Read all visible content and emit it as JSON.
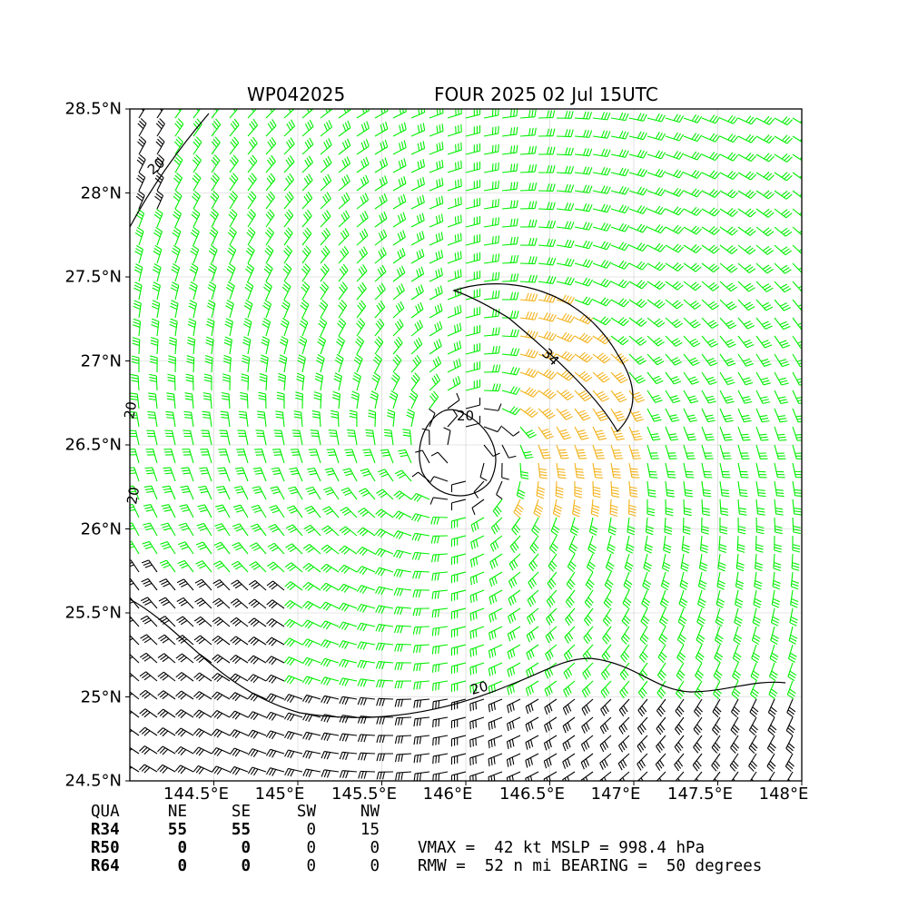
{
  "title": {
    "storm_id": "WP042025",
    "storm_info": "FOUR 2025 02 Jul 15UTC"
  },
  "map": {
    "lat_labels": [
      "28.5°N",
      "28°N",
      "27.5°N",
      "27°N",
      "26.5°N",
      "26°N",
      "25.5°N",
      "25°N",
      "24.5°N"
    ],
    "lon_labels": [
      "144.5°E",
      "145°E",
      "145.5°E",
      "146°E",
      "146.5°E",
      "147°E",
      "147.5°E",
      "148°E"
    ],
    "lat_values": [
      28.5,
      28.0,
      27.5,
      27.0,
      26.5,
      26.0,
      25.5,
      25.0,
      24.5
    ],
    "lon_values": [
      144.5,
      145.0,
      145.5,
      146.0,
      146.5,
      147.0,
      147.5,
      148.0
    ],
    "lon_range": [
      144.0,
      148.0
    ],
    "lat_range": [
      24.5,
      28.5
    ],
    "storm_center": {
      "lon": 146.0,
      "lat": 26.45
    },
    "contour_labels": [
      "20",
      "20",
      "20",
      "20",
      "20",
      "34"
    ],
    "barb_colors": {
      "below_34kt": "#000000",
      "34_to_50kt": "#00ee00",
      "above_34_core": "#f2b21a"
    },
    "grid": true
  },
  "wind_radii_table": {
    "headers": [
      "QUA",
      "NE",
      "SE",
      "SW",
      "NW"
    ],
    "rows": [
      {
        "label": "R34",
        "values": [
          "55",
          "55",
          "0",
          "15"
        ]
      },
      {
        "label": "R50",
        "values": [
          "0",
          "0",
          "0",
          "0"
        ]
      },
      {
        "label": "R64",
        "values": [
          "0",
          "0",
          "0",
          "0"
        ]
      }
    ]
  },
  "summary": {
    "line1": "VMAX =  42 kt MSLP = 998.4 hPa",
    "line2": "RMW =  52 n mi BEARING =  50 degrees"
  }
}
